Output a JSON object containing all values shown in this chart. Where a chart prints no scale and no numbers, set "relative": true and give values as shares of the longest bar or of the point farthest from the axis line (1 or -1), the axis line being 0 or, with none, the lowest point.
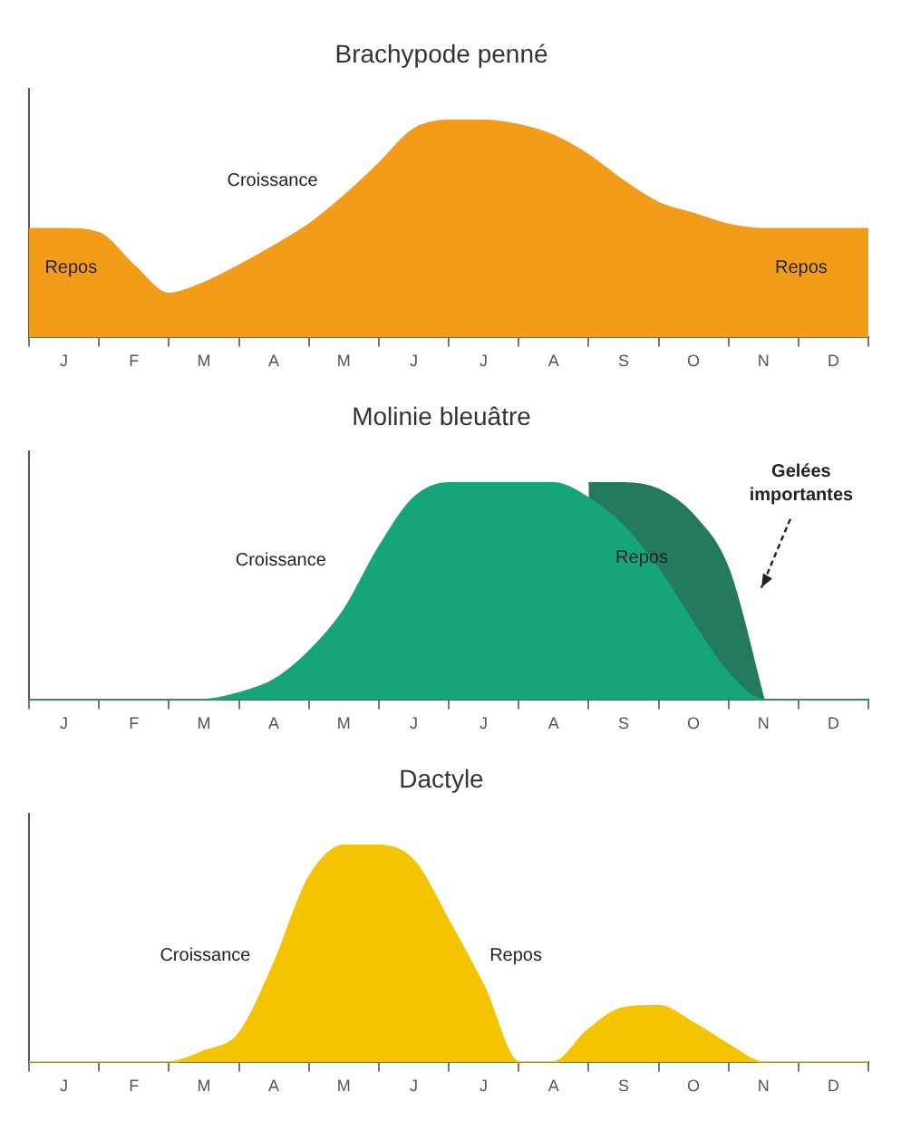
{
  "chart_data": [
    {
      "type": "area",
      "title": "Brachypode penné",
      "relative": true,
      "categories": [
        null,
        "J",
        null,
        "F",
        null,
        "M",
        null,
        "A",
        null,
        "M",
        null,
        "J",
        null,
        "J",
        null,
        "A",
        null,
        "S",
        null,
        "O",
        null,
        "N",
        null,
        "D",
        null
      ],
      "series": [
        {
          "color": "#f39c1a",
          "values": [
            0.5,
            0.5,
            0.48,
            0.33,
            0.2,
            0.25,
            0.33,
            0.42,
            0.52,
            0.65,
            0.8,
            0.96,
            1,
            1,
            0.98,
            0.93,
            0.84,
            0.72,
            0.62,
            0.57,
            0.52,
            0.5,
            0.5,
            0.5,
            0.5
          ]
        }
      ],
      "annotations": [
        "Croissance",
        "Repos",
        "Repos"
      ]
    },
    {
      "type": "area",
      "title": "Molinie bleuâtre",
      "relative": true,
      "categories": [
        null,
        "J",
        null,
        "F",
        null,
        "M",
        null,
        "A",
        null,
        "M",
        null,
        "J",
        null,
        "J",
        null,
        "A",
        null,
        "S",
        null,
        "O",
        null,
        "N",
        null,
        "D",
        null
      ],
      "series": [
        {
          "color": "#16a57a",
          "values": [
            0,
            0,
            0,
            0,
            0,
            0,
            0.03,
            0.09,
            0.22,
            0.41,
            0.7,
            0.93,
            1,
            1,
            1,
            1,
            0.93,
            0.8,
            0.6,
            0.35,
            0.12,
            0,
            0,
            0,
            0
          ]
        },
        {
          "color": "#237a5c",
          "values": [
            null,
            null,
            null,
            null,
            null,
            null,
            null,
            null,
            null,
            null,
            null,
            null,
            null,
            null,
            null,
            null,
            1,
            1,
            0.97,
            0.85,
            0.6,
            0,
            null,
            null,
            null
          ]
        }
      ],
      "annotations": [
        "Croissance",
        "Repos",
        "Gelées importantes"
      ]
    },
    {
      "type": "area",
      "title": "Dactyle",
      "relative": true,
      "categories": [
        null,
        "J",
        null,
        "F",
        null,
        "M",
        null,
        "A",
        null,
        "M",
        null,
        "J",
        null,
        "J",
        null,
        "A",
        null,
        "S",
        null,
        "O",
        null,
        "N",
        null,
        "D",
        null
      ],
      "series": [
        {
          "color": "#f5c400",
          "values": [
            0,
            0,
            0,
            0,
            0,
            0.05,
            0.13,
            0.45,
            0.85,
            1,
            1,
            0.93,
            0.65,
            0.35,
            0,
            0,
            0.15,
            0.25,
            0.26,
            0.18,
            0.08,
            0,
            0,
            0,
            0
          ]
        }
      ],
      "annotations": [
        "Croissance",
        "Repos"
      ]
    }
  ]
}
